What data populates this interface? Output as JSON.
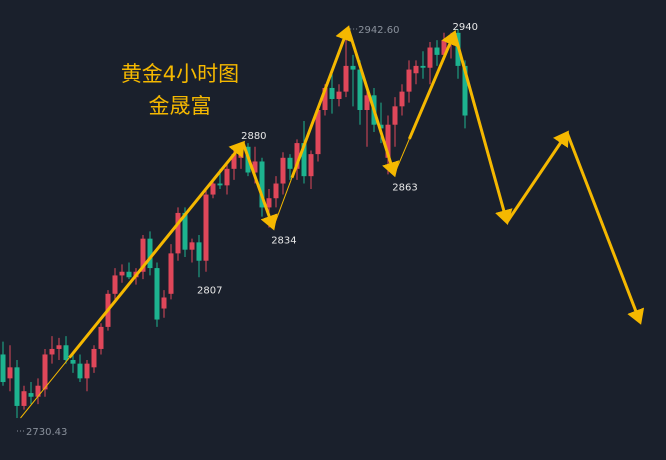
{
  "chart_data": {
    "type": "candlestick",
    "title": "黄金4小时图",
    "subtitle": "金晟富",
    "colors": {
      "background": "#1a202c",
      "up": "#e0475a",
      "down": "#1db38f",
      "arrow": "#f5b800",
      "label": "#e8e8e8",
      "extreme_label": "#8a919c"
    },
    "candles": [
      [
        2765,
        2772,
        2748,
        2750
      ],
      [
        2752,
        2770,
        2745,
        2758
      ],
      [
        2758,
        2762,
        2730.43,
        2737
      ],
      [
        2737,
        2748,
        2735,
        2745
      ],
      [
        2744,
        2750,
        2738,
        2742
      ],
      [
        2742,
        2752,
        2738,
        2748
      ],
      [
        2746,
        2768,
        2742,
        2765
      ],
      [
        2765,
        2775,
        2760,
        2768
      ],
      [
        2768,
        2774,
        2762,
        2770
      ],
      [
        2770,
        2775,
        2760,
        2762
      ],
      [
        2762,
        2766,
        2755,
        2760
      ],
      [
        2760,
        2765,
        2750,
        2752
      ],
      [
        2752,
        2762,
        2745,
        2760
      ],
      [
        2758,
        2770,
        2755,
        2768
      ],
      [
        2768,
        2782,
        2765,
        2780
      ],
      [
        2780,
        2800,
        2778,
        2798
      ],
      [
        2798,
        2812,
        2795,
        2808
      ],
      [
        2808,
        2814,
        2804,
        2810
      ],
      [
        2810,
        2815,
        2806,
        2807
      ],
      [
        2807,
        2812,
        2803,
        2810
      ],
      [
        2810,
        2830,
        2806,
        2828
      ],
      [
        2828,
        2832,
        2808,
        2812
      ],
      [
        2812,
        2815,
        2780,
        2784
      ],
      [
        2790,
        2800,
        2785,
        2796
      ],
      [
        2798,
        2825,
        2795,
        2820
      ],
      [
        2820,
        2845,
        2816,
        2842
      ],
      [
        2842,
        2845,
        2818,
        2822
      ],
      [
        2822,
        2828,
        2815,
        2826
      ],
      [
        2826,
        2830,
        2807,
        2816
      ],
      [
        2816,
        2855,
        2810,
        2852
      ],
      [
        2852,
        2860,
        2850,
        2858
      ],
      [
        2858,
        2866,
        2855,
        2857
      ],
      [
        2857,
        2870,
        2852,
        2866
      ],
      [
        2866,
        2876,
        2860,
        2874
      ],
      [
        2872,
        2880,
        2866,
        2878
      ],
      [
        2878,
        2880,
        2862,
        2864
      ],
      [
        2864,
        2878,
        2858,
        2870
      ],
      [
        2870,
        2872,
        2840,
        2845
      ],
      [
        2845,
        2855,
        2834,
        2850
      ],
      [
        2850,
        2862,
        2845,
        2858
      ],
      [
        2858,
        2875,
        2852,
        2872
      ],
      [
        2872,
        2874,
        2860,
        2866
      ],
      [
        2866,
        2882,
        2860,
        2880
      ],
      [
        2880,
        2892,
        2858,
        2862
      ],
      [
        2862,
        2876,
        2855,
        2874
      ],
      [
        2874,
        2900,
        2870,
        2898
      ],
      [
        2898,
        2912,
        2895,
        2910
      ],
      [
        2910,
        2918,
        2896,
        2904
      ],
      [
        2904,
        2912,
        2900,
        2908
      ],
      [
        2908,
        2942.6,
        2905,
        2922
      ],
      [
        2922,
        2928,
        2900,
        2920
      ],
      [
        2920,
        2925,
        2890,
        2898
      ],
      [
        2898,
        2912,
        2878,
        2906
      ],
      [
        2906,
        2910,
        2886,
        2890
      ],
      [
        2890,
        2902,
        2880,
        2888
      ],
      [
        2872,
        2895,
        2863,
        2890
      ],
      [
        2890,
        2905,
        2878,
        2900
      ],
      [
        2900,
        2912,
        2895,
        2908
      ],
      [
        2908,
        2925,
        2902,
        2920
      ],
      [
        2918,
        2925,
        2912,
        2922
      ],
      [
        2922,
        2930,
        2915,
        2921
      ],
      [
        2921,
        2935,
        2912,
        2932
      ],
      [
        2932,
        2936,
        2922,
        2928
      ],
      [
        2928,
        2940,
        2925,
        2936
      ],
      [
        2936,
        2940,
        2926,
        2938
      ],
      [
        2940,
        2942,
        2915,
        2922
      ],
      [
        2922,
        2925,
        2888,
        2895
      ]
    ],
    "projection_path": [
      [
        2.5,
        2730.43
      ],
      [
        34.3,
        2880
      ],
      [
        38.6,
        2834
      ],
      [
        49.3,
        2942.6
      ],
      [
        55.9,
        2863
      ],
      [
        64.5,
        2940
      ],
      [
        72,
        2837
      ],
      [
        80.6,
        2885.5
      ],
      [
        91,
        2782.7
      ]
    ],
    "labels": [
      {
        "text": "2730.43",
        "index": 2,
        "price": 2730.43,
        "kind": "extreme"
      },
      {
        "text": "2807",
        "index": 28,
        "price": 2807,
        "kind": "point"
      },
      {
        "text": "2880",
        "index": 34.3,
        "price": 2880,
        "kind": "point"
      },
      {
        "text": "2834",
        "index": 38.6,
        "price": 2834,
        "kind": "point"
      },
      {
        "text": "2942.60",
        "index": 49.3,
        "price": 2942.6,
        "kind": "extreme"
      },
      {
        "text": "2863",
        "index": 55.9,
        "price": 2863,
        "kind": "point"
      },
      {
        "text": "2940",
        "index": 64.5,
        "price": 2940,
        "kind": "point"
      }
    ]
  }
}
